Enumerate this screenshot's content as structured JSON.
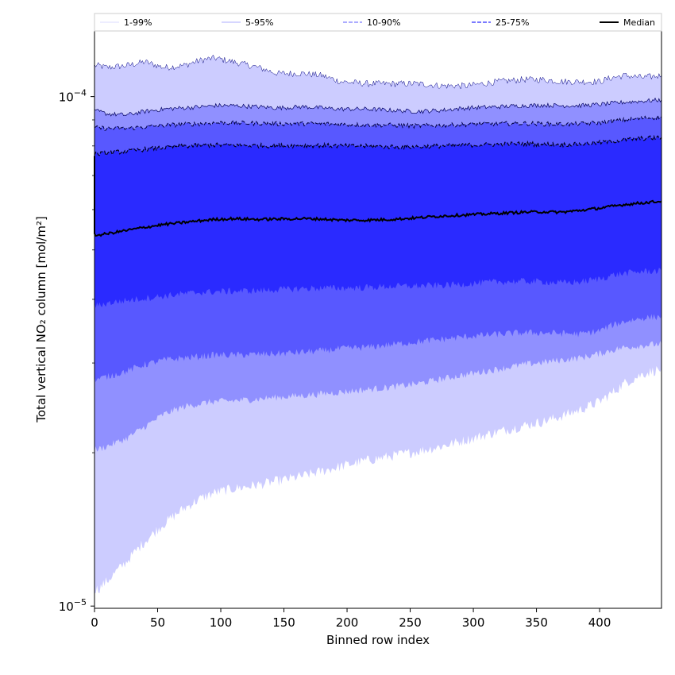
{
  "chart_data": {
    "type": "area",
    "title": "",
    "xlabel": "Binned row index",
    "ylabel": "Total vertical NO₂ column [mol/m²]",
    "xlim": [
      0,
      449
    ],
    "ylim": [
      9.9e-06,
      0.000135
    ],
    "yscale": "log",
    "x_ticks": [
      0,
      50,
      100,
      150,
      200,
      250,
      300,
      350,
      400
    ],
    "y_ticks": [
      {
        "value": 1e-05,
        "base": "10",
        "exp": "−5"
      },
      {
        "value": 0.0001,
        "base": "10",
        "exp": "−4"
      }
    ],
    "legend_position": "top",
    "x": [
      0,
      3,
      10,
      25,
      40,
      55,
      70,
      85,
      95,
      110,
      130,
      145,
      165,
      180,
      195,
      215,
      235,
      255,
      275,
      295,
      320,
      340,
      355,
      370,
      385,
      400,
      410,
      420,
      435,
      449
    ],
    "bands": [
      {
        "name": "1-99%",
        "color": "#ccccff",
        "line_color": "#000080",
        "line_style": "solid",
        "line_width": 0.5,
        "upper": [
          0.000115,
          0.000115,
          0.000114,
          0.000115,
          0.000117,
          0.000114,
          0.000115,
          0.000118,
          0.000119,
          0.000117,
          0.000114,
          0.000111,
          0.000111,
          0.00011,
          0.000107,
          0.000106,
          0.000106,
          0.000106,
          0.000105,
          0.000105,
          0.000107,
          0.000108,
          0.000108,
          0.000107,
          0.000107,
          0.000107,
          0.000109,
          0.00011,
          0.000109,
          0.00011
        ],
        "lower": [
          1.08e-05,
          1.08e-05,
          1.12e-05,
          1.22e-05,
          1.34e-05,
          1.45e-05,
          1.55e-05,
          1.63e-05,
          1.67e-05,
          1.7e-05,
          1.73e-05,
          1.76e-05,
          1.8e-05,
          1.84e-05,
          1.88e-05,
          1.93e-05,
          1.97e-05,
          2.01e-05,
          2.06e-05,
          2.12e-05,
          2.2e-05,
          2.26e-05,
          2.3e-05,
          2.36e-05,
          2.43e-05,
          2.52e-05,
          2.62e-05,
          2.74e-05,
          2.86e-05,
          2.92e-05
        ]
      },
      {
        "name": "5-95%",
        "color": "#9090ff",
        "line_color": "#000060",
        "line_style": "solid",
        "line_width": 0.7,
        "upper": [
          9.35e-05,
          9.35e-05,
          9.25e-05,
          9.2e-05,
          9.35e-05,
          9.45e-05,
          9.5e-05,
          9.55e-05,
          9.6e-05,
          9.6e-05,
          9.55e-05,
          9.5e-05,
          9.55e-05,
          9.5e-05,
          9.45e-05,
          9.45e-05,
          9.4e-05,
          9.35e-05,
          9.4e-05,
          9.5e-05,
          9.55e-05,
          9.6e-05,
          9.62e-05,
          9.6e-05,
          9.6e-05,
          9.65e-05,
          9.7e-05,
          9.75e-05,
          9.8e-05,
          9.85e-05
        ],
        "lower": [
          2.03e-05,
          2.03e-05,
          2.06e-05,
          2.13e-05,
          2.25e-05,
          2.38e-05,
          2.46e-05,
          2.5e-05,
          2.52e-05,
          2.53e-05,
          2.55e-05,
          2.57e-05,
          2.59e-05,
          2.61e-05,
          2.63e-05,
          2.66e-05,
          2.69e-05,
          2.73e-05,
          2.79e-05,
          2.85e-05,
          2.92e-05,
          2.98e-05,
          3.01e-05,
          3.04e-05,
          3.07e-05,
          3.13e-05,
          3.18e-05,
          3.22e-05,
          3.25e-05,
          3.27e-05
        ]
      },
      {
        "name": "10-90%",
        "color": "#5858ff",
        "line_color": "#000040",
        "line_style": "dashed",
        "line_width": 1.0,
        "upper": [
          8.68e-05,
          8.68e-05,
          8.66e-05,
          8.66e-05,
          8.72e-05,
          8.78e-05,
          8.82e-05,
          8.85e-05,
          8.88e-05,
          8.88e-05,
          8.86e-05,
          8.84e-05,
          8.85e-05,
          8.84e-05,
          8.82e-05,
          8.8e-05,
          8.79e-05,
          8.76e-05,
          8.78e-05,
          8.82e-05,
          8.85e-05,
          8.86e-05,
          8.84e-05,
          8.82e-05,
          8.84e-05,
          8.89e-05,
          8.94e-05,
          9e-05,
          9.07e-05,
          9.12e-05
        ],
        "lower": [
          2.79e-05,
          2.79e-05,
          2.82e-05,
          2.89e-05,
          2.98e-05,
          3.04e-05,
          3.07e-05,
          3.09e-05,
          3.11e-05,
          3.11e-05,
          3.12e-05,
          3.13e-05,
          3.15e-05,
          3.17e-05,
          3.2e-05,
          3.22e-05,
          3.26e-05,
          3.3e-05,
          3.34e-05,
          3.38e-05,
          3.42e-05,
          3.44e-05,
          3.44e-05,
          3.43e-05,
          3.42e-05,
          3.47e-05,
          3.56e-05,
          3.62e-05,
          3.68e-05,
          3.7e-05
        ]
      },
      {
        "name": "25-75%",
        "color": "#2a2aff",
        "line_color": "#000020",
        "line_style": "dashed",
        "line_width": 1.2,
        "upper": [
          7.72e-05,
          7.72e-05,
          7.75e-05,
          7.81e-05,
          7.88e-05,
          7.94e-05,
          7.99e-05,
          8.02e-05,
          8.03e-05,
          8.03e-05,
          8.01e-05,
          8.01e-05,
          8.02e-05,
          8.02e-05,
          8e-05,
          7.99e-05,
          7.97e-05,
          7.97e-05,
          8e-05,
          8.03e-05,
          8.06e-05,
          8.08e-05,
          8.06e-05,
          8.05e-05,
          8.07e-05,
          8.12e-05,
          8.17e-05,
          8.23e-05,
          8.28e-05,
          8.31e-05
        ],
        "lower": [
          3.89e-05,
          3.89e-05,
          3.93e-05,
          3.98e-05,
          4.02e-05,
          4.06e-05,
          4.1e-05,
          4.13e-05,
          4.14e-05,
          4.15e-05,
          4.16e-05,
          4.18e-05,
          4.2e-05,
          4.21e-05,
          4.21e-05,
          4.22e-05,
          4.24e-05,
          4.25e-05,
          4.26e-05,
          4.29e-05,
          4.33e-05,
          4.34e-05,
          4.33e-05,
          4.31e-05,
          4.33e-05,
          4.39e-05,
          4.46e-05,
          4.5e-05,
          4.54e-05,
          4.55e-05
        ]
      }
    ],
    "median": {
      "name": "Median",
      "color": "#000000",
      "values": [
        5.35e-05,
        5.35e-05,
        5.38e-05,
        5.46e-05,
        5.54e-05,
        5.61e-05,
        5.66e-05,
        5.71e-05,
        5.74e-05,
        5.76e-05,
        5.74e-05,
        5.75e-05,
        5.76e-05,
        5.75e-05,
        5.72e-05,
        5.72e-05,
        5.74e-05,
        5.78e-05,
        5.83e-05,
        5.86e-05,
        5.9e-05,
        5.93e-05,
        5.94e-05,
        5.93e-05,
        5.98e-05,
        6.04e-05,
        6.09e-05,
        6.14e-05,
        6.19e-05,
        6.23e-05
      ]
    },
    "median_start": 7.65e-05
  }
}
